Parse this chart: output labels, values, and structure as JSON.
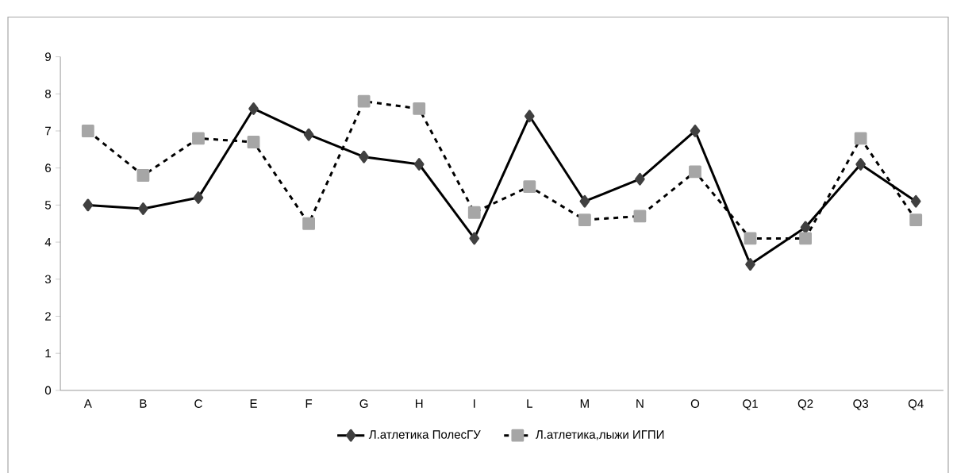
{
  "chart_data": {
    "type": "line",
    "categories": [
      "A",
      "B",
      "C",
      "E",
      "F",
      "G",
      "H",
      "I",
      "L",
      "M",
      "N",
      "O",
      "Q1",
      "Q2",
      "Q3",
      "Q4"
    ],
    "series": [
      {
        "name": "Л.атлетика ПолесГУ",
        "color": "#404040",
        "marker": "diamond",
        "line_style": "solid",
        "values": [
          5.0,
          4.9,
          5.2,
          7.6,
          6.9,
          6.3,
          6.1,
          4.1,
          7.4,
          5.1,
          5.7,
          7.0,
          3.4,
          4.4,
          6.1,
          5.1
        ]
      },
      {
        "name": "Л.атлетика,лыжи ИГПИ",
        "color": "#a6a6a6",
        "marker": "square",
        "line_style": "dashed",
        "values": [
          7.0,
          5.8,
          6.8,
          6.7,
          4.5,
          7.8,
          7.6,
          4.8,
          5.5,
          4.6,
          4.7,
          5.9,
          4.1,
          4.1,
          6.8,
          4.6
        ]
      }
    ],
    "ylim": [
      0,
      9
    ],
    "yticks": [
      0,
      1,
      2,
      3,
      4,
      5,
      6,
      7,
      8,
      9
    ],
    "grid": false,
    "legend": "bottom"
  }
}
